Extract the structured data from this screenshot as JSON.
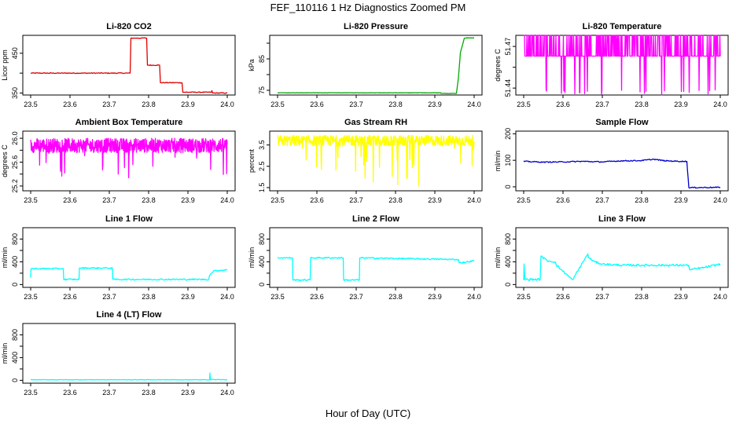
{
  "figure": {
    "title": "FEF_110116  1 Hz Diagnostics Zoomed PM",
    "xlabel": "Hour of Day (UTC)"
  },
  "chart_data": [
    {
      "type": "line",
      "title": "Li-820 CO2",
      "ylabel": "Licor ppm",
      "color": "#dd0000",
      "x_ticks": [
        "23.5",
        "23.6",
        "23.7",
        "23.8",
        "23.9",
        "24.0"
      ],
      "y_ticks": [
        {
          "v": 350,
          "label": "350"
        },
        {
          "v": 400,
          "label": ""
        },
        {
          "v": 450,
          "label": "450"
        }
      ],
      "xlim": [
        23.5,
        24.0
      ],
      "ylim": [
        345,
        495
      ],
      "noise": 1,
      "series": [
        {
          "x": [
            23.5,
            23.753,
            23.755,
            23.795,
            23.797,
            23.828,
            23.83,
            23.885,
            23.887,
            23.96,
            23.961,
            23.962,
            23.963,
            24.0
          ],
          "y": [
            400,
            400,
            488,
            488,
            420,
            420,
            376,
            376,
            352,
            352,
            356,
            352,
            350,
            350
          ]
        }
      ]
    },
    {
      "type": "line",
      "title": "Li-820 Pressure",
      "ylabel": "kPa",
      "color": "#00aa00",
      "x_ticks": [
        "23.5",
        "23.6",
        "23.7",
        "23.8",
        "23.9",
        "24.0"
      ],
      "y_ticks": [
        {
          "v": 75,
          "label": "75"
        },
        {
          "v": 80,
          "label": ""
        },
        {
          "v": 85,
          "label": "85"
        },
        {
          "v": 90,
          "label": ""
        }
      ],
      "xlim": [
        23.5,
        24.0
      ],
      "ylim": [
        73.5,
        92.5
      ],
      "noise": 0.05,
      "series": [
        {
          "x": [
            23.5,
            23.915,
            23.916,
            23.955,
            23.96,
            23.965,
            23.975,
            23.985,
            24.0
          ],
          "y": [
            74.2,
            74.2,
            74.0,
            74.0,
            79,
            87,
            91.6,
            91.7,
            91.7
          ]
        }
      ]
    },
    {
      "type": "line",
      "title": "Li-820 Temperature",
      "ylabel": "degrees C",
      "color": "#ff00ff",
      "x_ticks": [
        "23.5",
        "23.6",
        "23.7",
        "23.8",
        "23.9",
        "24.0"
      ],
      "y_ticks": [
        {
          "v": 51.44,
          "label": "51.44"
        },
        {
          "v": 51.455,
          "label": ""
        },
        {
          "v": 51.47,
          "label": "51.47"
        }
      ],
      "xlim": [
        23.5,
        24.0
      ],
      "ylim": [
        51.435,
        51.478
      ],
      "pattern": "spiky",
      "base": 51.463,
      "high": 51.478,
      "low": 51.435
    },
    {
      "type": "line",
      "title": "Ambient Box Temperature",
      "ylabel": "degrees C",
      "color": "#ff00ff",
      "x_ticks": [
        "23.5",
        "23.6",
        "23.7",
        "23.8",
        "23.9",
        "24.0"
      ],
      "y_ticks": [
        {
          "v": 25.2,
          "label": "25.2"
        },
        {
          "v": 25.4,
          "label": ""
        },
        {
          "v": 25.6,
          "label": "25.6"
        },
        {
          "v": 25.8,
          "label": ""
        },
        {
          "v": 26.0,
          "label": "26.0"
        }
      ],
      "xlim": [
        23.5,
        24.0
      ],
      "ylim": [
        25.12,
        26.12
      ],
      "pattern": "band",
      "base": 25.88,
      "spread": 0.12,
      "drop": 0.55
    },
    {
      "type": "line",
      "title": "Gas Stream RH",
      "ylabel": "percent",
      "color": "#ffff00",
      "x_ticks": [
        "23.5",
        "23.6",
        "23.7",
        "23.8",
        "23.9",
        "24.0"
      ],
      "y_ticks": [
        {
          "v": 1.5,
          "label": "1.5"
        },
        {
          "v": 2.5,
          "label": "2.5"
        },
        {
          "v": 3.5,
          "label": "3.5"
        }
      ],
      "xlim": [
        23.5,
        24.0
      ],
      "ylim": [
        1.35,
        4.15
      ],
      "pattern": "rh",
      "base": 3.7,
      "spread": 0.25
    },
    {
      "type": "line",
      "title": "Sample Flow",
      "ylabel": "ml/min",
      "color": "#0000cc",
      "x_ticks": [
        "23.5",
        "23.6",
        "23.7",
        "23.8",
        "23.9",
        "24.0"
      ],
      "y_ticks": [
        {
          "v": 0,
          "label": "0"
        },
        {
          "v": 100,
          "label": "100"
        },
        {
          "v": 200,
          "label": "200"
        }
      ],
      "xlim": [
        23.5,
        24.0
      ],
      "ylim": [
        -15,
        210
      ],
      "noise": 2,
      "series": [
        {
          "x": [
            23.5,
            23.55,
            23.6,
            23.65,
            23.7,
            23.75,
            23.8,
            23.83,
            23.86,
            23.9,
            23.915,
            23.92,
            24.0
          ],
          "y": [
            96,
            93,
            94,
            96,
            94,
            98,
            99,
            104,
            98,
            96,
            96,
            -3,
            -2
          ]
        }
      ]
    },
    {
      "type": "line",
      "title": "Line 1 Flow",
      "ylabel": "ml/min",
      "color": "#00ffff",
      "x_ticks": [
        "23.5",
        "23.6",
        "23.7",
        "23.8",
        "23.9",
        "24.0"
      ],
      "y_ticks": [
        {
          "v": 0,
          "label": "0"
        },
        {
          "v": 200,
          "label": ""
        },
        {
          "v": 400,
          "label": "400"
        },
        {
          "v": 600,
          "label": ""
        },
        {
          "v": 800,
          "label": "800"
        }
      ],
      "xlim": [
        23.5,
        24.0
      ],
      "ylim": [
        -50,
        1000
      ],
      "noise": 12,
      "series": [
        {
          "x": [
            23.5,
            23.501,
            23.583,
            23.584,
            23.623,
            23.624,
            23.708,
            23.709,
            23.953,
            23.955,
            23.965,
            24.0
          ],
          "y": [
            130,
            280,
            280,
            90,
            90,
            290,
            290,
            90,
            90,
            160,
            240,
            260
          ]
        }
      ]
    },
    {
      "type": "line",
      "title": "Line 2 Flow",
      "ylabel": "ml/min",
      "color": "#00ffff",
      "x_ticks": [
        "23.5",
        "23.6",
        "23.7",
        "23.8",
        "23.9",
        "24.0"
      ],
      "y_ticks": [
        {
          "v": 0,
          "label": "0"
        },
        {
          "v": 200,
          "label": ""
        },
        {
          "v": 400,
          "label": "400"
        },
        {
          "v": 600,
          "label": ""
        },
        {
          "v": 800,
          "label": "800"
        }
      ],
      "xlim": [
        23.5,
        24.0
      ],
      "ylim": [
        -50,
        1000
      ],
      "noise": 12,
      "series": [
        {
          "x": [
            23.5,
            23.538,
            23.539,
            23.583,
            23.584,
            23.667,
            23.668,
            23.708,
            23.709,
            23.96,
            23.962,
            23.985,
            24.0
          ],
          "y": [
            470,
            470,
            80,
            80,
            470,
            470,
            80,
            80,
            470,
            440,
            380,
            400,
            420
          ]
        }
      ]
    },
    {
      "type": "line",
      "title": "Line 3 Flow",
      "ylabel": "ml/min",
      "color": "#00ffff",
      "x_ticks": [
        "23.5",
        "23.6",
        "23.7",
        "23.8",
        "23.9",
        "24.0"
      ],
      "y_ticks": [
        {
          "v": 0,
          "label": "0"
        },
        {
          "v": 200,
          "label": ""
        },
        {
          "v": 400,
          "label": "400"
        },
        {
          "v": 600,
          "label": ""
        },
        {
          "v": 800,
          "label": "800"
        }
      ],
      "xlim": [
        23.5,
        24.0
      ],
      "ylim": [
        -50,
        1000
      ],
      "noise": 18,
      "series": [
        {
          "x": [
            23.5,
            23.501,
            23.503,
            23.542,
            23.544,
            23.56,
            23.58,
            23.583,
            23.623,
            23.625,
            23.663,
            23.665,
            23.68,
            23.7,
            23.75,
            23.9,
            23.92,
            23.922,
            23.96,
            24.0
          ],
          "y": [
            80,
            360,
            90,
            90,
            500,
            420,
            400,
            340,
            90,
            90,
            540,
            470,
            400,
            360,
            340,
            340,
            340,
            260,
            300,
            360
          ]
        }
      ]
    },
    {
      "type": "line",
      "title": "Line 4 (LT) Flow",
      "ylabel": "ml/min",
      "color": "#00ffff",
      "x_ticks": [
        "23.5",
        "23.6",
        "23.7",
        "23.8",
        "23.9",
        "24.0"
      ],
      "y_ticks": [
        {
          "v": 0,
          "label": "0"
        },
        {
          "v": 200,
          "label": ""
        },
        {
          "v": 400,
          "label": "400"
        },
        {
          "v": 600,
          "label": ""
        },
        {
          "v": 800,
          "label": "800"
        }
      ],
      "xlim": [
        23.5,
        24.0
      ],
      "ylim": [
        -50,
        1000
      ],
      "noise": 4,
      "series": [
        {
          "x": [
            23.5,
            23.955,
            23.956,
            23.957,
            23.958,
            24.0
          ],
          "y": [
            10,
            10,
            130,
            10,
            15,
            10
          ]
        }
      ]
    }
  ]
}
